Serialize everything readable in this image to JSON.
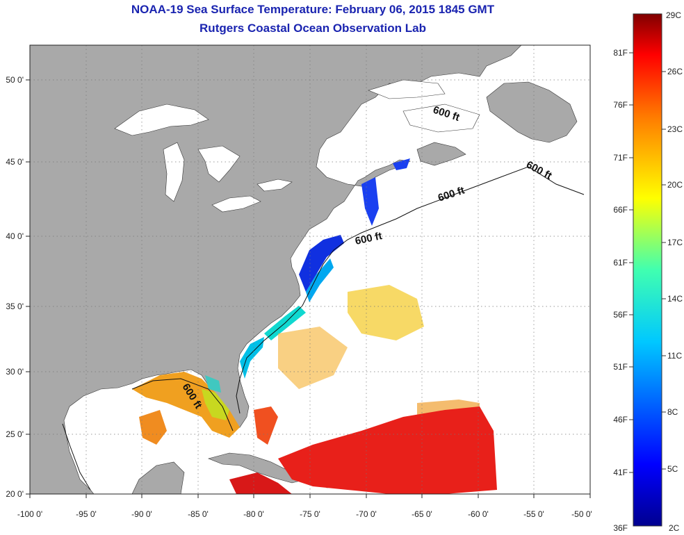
{
  "title": "NOAA-19 Sea Surface Temperature:  February 06, 2015 1845 GMT",
  "subtitle": "Rutgers Coastal Ocean Observation Lab",
  "lon_ticks": [
    "-100 0'",
    "-95 0'",
    "-90 0'",
    "-85 0'",
    "-80 0'",
    "-75 0'",
    "-70 0'",
    "-65 0'",
    "-60 0'",
    "-55 0'",
    "-50 0'"
  ],
  "lat_ticks": [
    "50 0'",
    "45 0'",
    "40 0'",
    "35 0'",
    "30 0'",
    "25 0'",
    "20 0'"
  ],
  "isobath_label": "600 ft",
  "colorbar": {
    "top_c": "29C",
    "bottom_c": "2C",
    "bottom_f": "36F",
    "celsius": [
      "26C",
      "23C",
      "20C",
      "17C",
      "14C",
      "11C",
      "8C",
      "5C"
    ],
    "fahrenheit": [
      "81F",
      "76F",
      "71F",
      "66F",
      "61F",
      "56F",
      "51F",
      "46F",
      "41F"
    ]
  },
  "colors": {
    "land": "#a9a9a9",
    "water_nodata": "#ffffff",
    "title": "#1a24b0"
  }
}
